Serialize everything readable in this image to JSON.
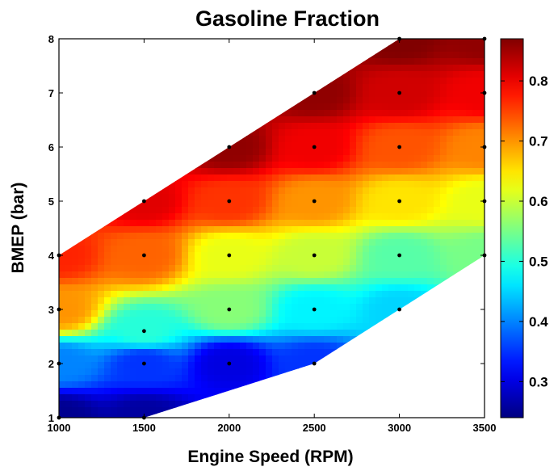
{
  "chart_data": {
    "type": "heatmap",
    "title": "Gasoline Fraction",
    "xlabel": "Engine Speed (RPM)",
    "ylabel": "BMEP (bar)",
    "xlim": [
      1000,
      3500
    ],
    "ylim": [
      1,
      8
    ],
    "x_ticks": [
      1000,
      1500,
      2000,
      2500,
      3000,
      3500
    ],
    "y_ticks": [
      1,
      2,
      3,
      4,
      5,
      6,
      7,
      8
    ],
    "colorbar": {
      "range": [
        0.24,
        0.87
      ],
      "ticks": [
        0.3,
        0.4,
        0.5,
        0.6,
        0.7,
        0.8
      ],
      "colormap": "jet",
      "placement": "right"
    },
    "domain_boundary": [
      [
        1000,
        1
      ],
      [
        1500,
        1
      ],
      [
        2500,
        2
      ],
      [
        3000,
        3
      ],
      [
        3500,
        4
      ],
      [
        3500,
        8
      ],
      [
        3000,
        8
      ],
      [
        2000,
        6
      ],
      [
        1500,
        5
      ],
      [
        1000,
        4
      ]
    ],
    "measured_points": [
      {
        "x": 1000,
        "y": 1,
        "value": 0.25
      },
      {
        "x": 1000,
        "y": 2,
        "value": 0.4
      },
      {
        "x": 1000,
        "y": 3,
        "value": 0.7
      },
      {
        "x": 1000,
        "y": 4,
        "value": 0.77
      },
      {
        "x": 1500,
        "y": 1,
        "value": 0.26
      },
      {
        "x": 1500,
        "y": 2,
        "value": 0.35
      },
      {
        "x": 1500,
        "y": 2.6,
        "value": 0.5
      },
      {
        "x": 1500,
        "y": 4,
        "value": 0.73
      },
      {
        "x": 1500,
        "y": 5,
        "value": 0.81
      },
      {
        "x": 2000,
        "y": 2,
        "value": 0.3
      },
      {
        "x": 2000,
        "y": 3,
        "value": 0.56
      },
      {
        "x": 2000,
        "y": 4,
        "value": 0.62
      },
      {
        "x": 2000,
        "y": 5,
        "value": 0.76
      },
      {
        "x": 2000,
        "y": 6,
        "value": 0.86
      },
      {
        "x": 2500,
        "y": 2,
        "value": 0.35
      },
      {
        "x": 2500,
        "y": 3,
        "value": 0.47
      },
      {
        "x": 2500,
        "y": 4,
        "value": 0.6
      },
      {
        "x": 2500,
        "y": 5,
        "value": 0.7
      },
      {
        "x": 2500,
        "y": 6,
        "value": 0.8
      },
      {
        "x": 2500,
        "y": 7,
        "value": 0.86
      },
      {
        "x": 3000,
        "y": 3,
        "value": 0.45
      },
      {
        "x": 3000,
        "y": 4,
        "value": 0.53
      },
      {
        "x": 3000,
        "y": 5,
        "value": 0.65
      },
      {
        "x": 3000,
        "y": 6,
        "value": 0.74
      },
      {
        "x": 3000,
        "y": 7,
        "value": 0.82
      },
      {
        "x": 3000,
        "y": 8,
        "value": 0.87
      },
      {
        "x": 3500,
        "y": 4,
        "value": 0.55
      },
      {
        "x": 3500,
        "y": 5,
        "value": 0.62
      },
      {
        "x": 3500,
        "y": 6,
        "value": 0.71
      },
      {
        "x": 3500,
        "y": 7,
        "value": 0.8
      },
      {
        "x": 3500,
        "y": 8,
        "value": 0.86
      }
    ]
  }
}
